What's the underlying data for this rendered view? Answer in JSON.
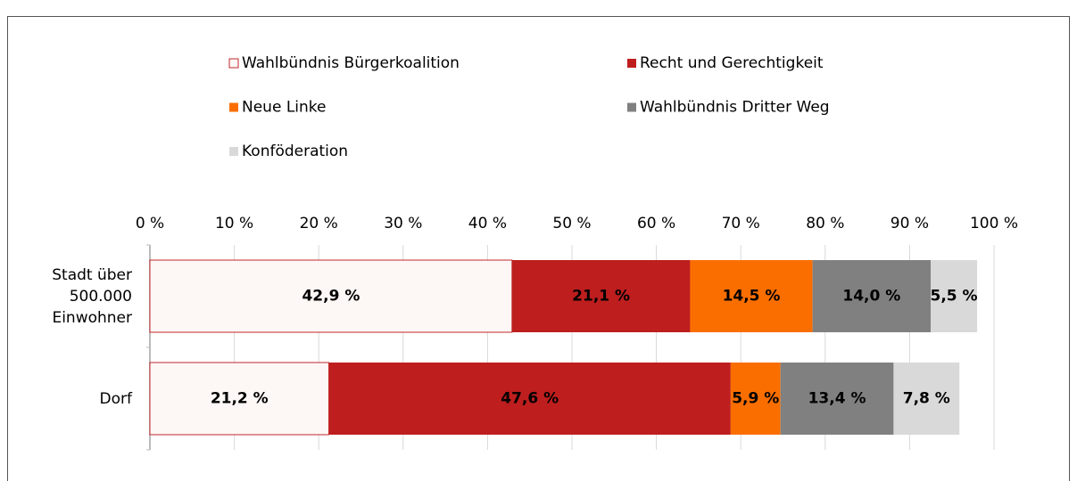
{
  "chart_data": {
    "type": "stacked-barh",
    "categories": [
      "Stadt über 500.000 Einwohner",
      "Dorf"
    ],
    "series": [
      {
        "name": "Wahlbündnis Bürgerkoalition",
        "color": "#fdf7f5",
        "stroke": "#c0282d",
        "label_color": "#000000",
        "values": [
          42.9,
          21.2
        ],
        "value_labels": [
          "42,9 %",
          "21,2 %"
        ]
      },
      {
        "name": "Recht und Gerechtigkeit",
        "color": "#be1e1e",
        "label_color": "#ffffff",
        "values": [
          21.1,
          47.6
        ],
        "value_labels": [
          "21,1 %",
          "47,6 %"
        ]
      },
      {
        "name": "Neue Linke",
        "color": "#fa6e00",
        "label_color": "#000000",
        "values": [
          14.5,
          5.9
        ],
        "value_labels": [
          "14,5 %",
          "5,9 %"
        ]
      },
      {
        "name": "Wahlbündnis Dritter Weg",
        "color": "#808080",
        "label_color": "#ffffff",
        "values": [
          14.0,
          13.4
        ],
        "value_labels": [
          "14,0 %",
          "13,4 %"
        ]
      },
      {
        "name": "Konföderation",
        "color": "#d9d9d9",
        "label_color": "#000000",
        "values": [
          5.5,
          7.8
        ],
        "value_labels": [
          "5,5 %",
          "7,8 %"
        ]
      }
    ],
    "xlim": [
      0,
      100
    ],
    "xticks": [
      {
        "value": 0,
        "label": "0 %"
      },
      {
        "value": 10,
        "label": "10 %"
      },
      {
        "value": 20,
        "label": "20 %"
      },
      {
        "value": 30,
        "label": "30 %"
      },
      {
        "value": 40,
        "label": "40 %"
      },
      {
        "value": 50,
        "label": "50 %"
      },
      {
        "value": 60,
        "label": "60 %"
      },
      {
        "value": 70,
        "label": "70 %"
      },
      {
        "value": 80,
        "label": "80 %"
      },
      {
        "value": 90,
        "label": "90 %"
      },
      {
        "value": 100,
        "label": "100 %"
      }
    ],
    "grid": true,
    "legend": "top"
  }
}
